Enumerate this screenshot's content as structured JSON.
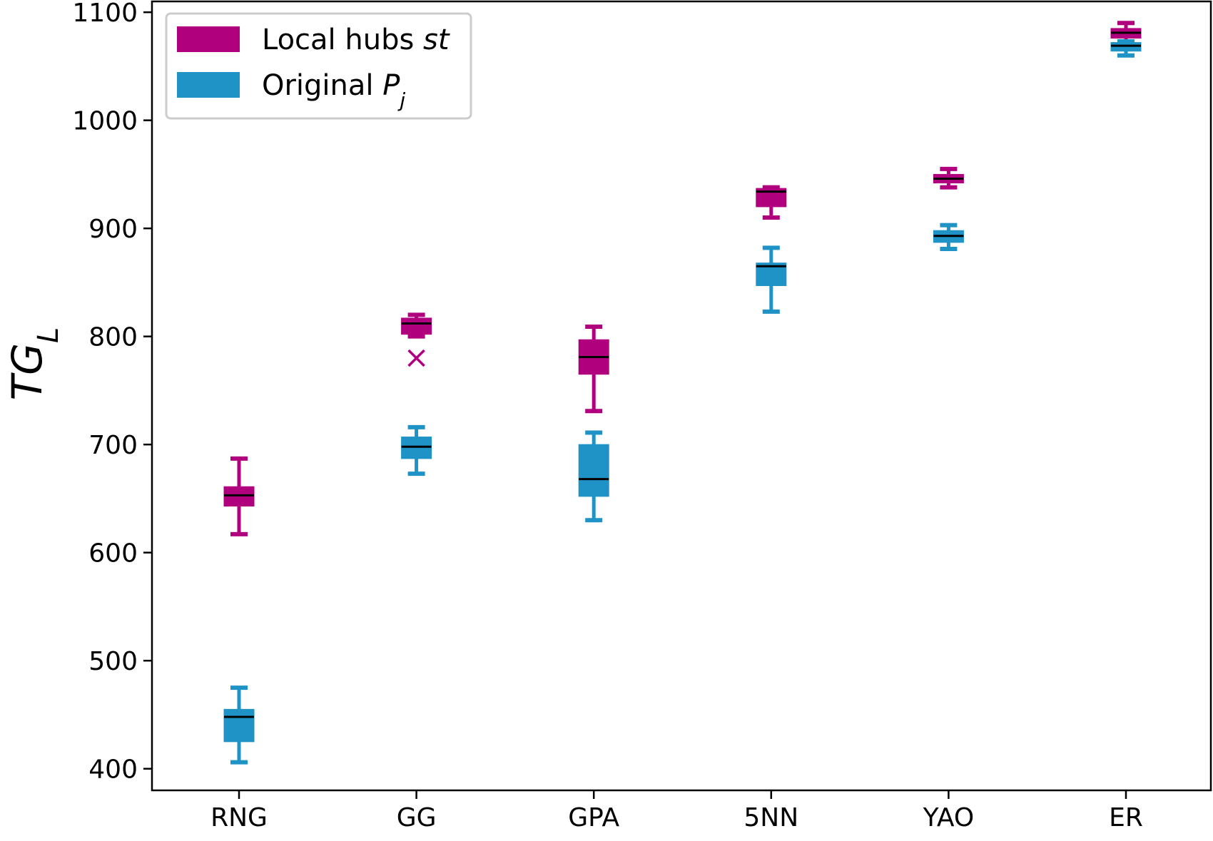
{
  "chart_data": {
    "type": "box",
    "ylabel": "TG",
    "ylabel_sub": "L",
    "xlabel": "",
    "ylim": [
      380,
      1110
    ],
    "yticks": [
      400,
      500,
      600,
      700,
      800,
      900,
      1000,
      1100
    ],
    "categories": [
      "RNG",
      "GG",
      "GPA",
      "5NN",
      "YAO",
      "ER"
    ],
    "legend": {
      "placement": "upper-left",
      "entries": [
        {
          "text": "Local hubs ",
          "italic": "st",
          "sub": ""
        },
        {
          "text": "Original ",
          "italic": "P",
          "sub": "j"
        }
      ]
    },
    "series": [
      {
        "name": "Local hubs st",
        "color": "#b0007e",
        "boxes": [
          {
            "category": "RNG",
            "whislo": 617,
            "q1": 643,
            "med": 653,
            "q3": 661,
            "whishi": 687,
            "fliers": []
          },
          {
            "category": "GG",
            "whislo": 800,
            "q1": 802,
            "med": 812,
            "q3": 817,
            "whishi": 820,
            "fliers": [
              780
            ]
          },
          {
            "category": "GPA",
            "whislo": 731,
            "q1": 765,
            "med": 781,
            "q3": 797,
            "whishi": 809,
            "fliers": []
          },
          {
            "category": "5NN",
            "whislo": 910,
            "q1": 920,
            "med": 934,
            "q3": 937,
            "whishi": 938,
            "fliers": []
          },
          {
            "category": "YAO",
            "whislo": 938,
            "q1": 942,
            "med": 946,
            "q3": 950,
            "whishi": 955,
            "fliers": []
          },
          {
            "category": "ER",
            "whislo": 1072,
            "q1": 1076,
            "med": 1081,
            "q3": 1085,
            "whishi": 1090,
            "fliers": []
          }
        ]
      },
      {
        "name": "Original Pj",
        "color": "#1f93c6",
        "boxes": [
          {
            "category": "RNG",
            "whislo": 406,
            "q1": 425,
            "med": 448,
            "q3": 455,
            "whishi": 475,
            "fliers": []
          },
          {
            "category": "GG",
            "whislo": 673,
            "q1": 687,
            "med": 698,
            "q3": 707,
            "whishi": 716,
            "fliers": []
          },
          {
            "category": "GPA",
            "whislo": 630,
            "q1": 652,
            "med": 668,
            "q3": 700,
            "whishi": 711,
            "fliers": []
          },
          {
            "category": "5NN",
            "whislo": 823,
            "q1": 847,
            "med": 865,
            "q3": 868,
            "whishi": 882,
            "fliers": []
          },
          {
            "category": "YAO",
            "whislo": 881,
            "q1": 887,
            "med": 893,
            "q3": 898,
            "whishi": 903,
            "fliers": []
          },
          {
            "category": "ER",
            "whislo": 1060,
            "q1": 1064,
            "med": 1069,
            "q3": 1072,
            "whishi": 1073,
            "fliers": []
          }
        ]
      }
    ]
  }
}
